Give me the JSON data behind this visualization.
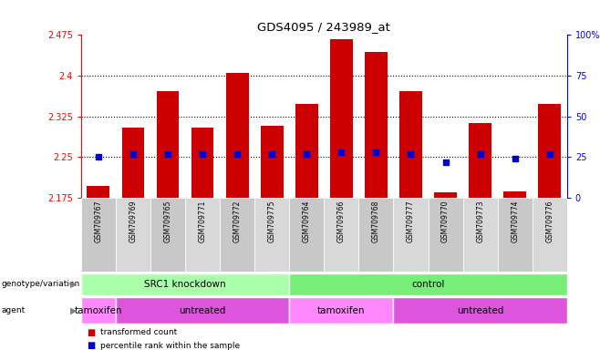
{
  "title": "GDS4095 / 243989_at",
  "samples": [
    "GSM709767",
    "GSM709769",
    "GSM709765",
    "GSM709771",
    "GSM709772",
    "GSM709775",
    "GSM709764",
    "GSM709766",
    "GSM709768",
    "GSM709777",
    "GSM709770",
    "GSM709773",
    "GSM709774",
    "GSM709776"
  ],
  "bar_values": [
    2.197,
    2.305,
    2.372,
    2.305,
    2.405,
    2.308,
    2.348,
    2.467,
    2.443,
    2.372,
    2.185,
    2.312,
    2.187,
    2.348
  ],
  "percentile_values": [
    25,
    27,
    27,
    27,
    27,
    27,
    27,
    28,
    28,
    27,
    22,
    27,
    24,
    27
  ],
  "y_min": 2.175,
  "y_max": 2.475,
  "y_ticks": [
    2.175,
    2.25,
    2.325,
    2.4,
    2.475
  ],
  "y_tick_labels": [
    "2.175",
    "2.25",
    "2.325",
    "2.4",
    "2.475"
  ],
  "y2_ticks": [
    0,
    25,
    50,
    75,
    100
  ],
  "y2_tick_labels": [
    "0",
    "25",
    "50",
    "75",
    "100%"
  ],
  "bar_color": "#cc0000",
  "percentile_color": "#0000cc",
  "grid_yticks": [
    2.25,
    2.325,
    2.4
  ],
  "genotype_groups": [
    {
      "label": "SRC1 knockdown",
      "start": 0,
      "end": 6,
      "color": "#aaffaa"
    },
    {
      "label": "control",
      "start": 6,
      "end": 14,
      "color": "#77ee77"
    }
  ],
  "agent_groups": [
    {
      "label": "tamoxifen",
      "start": 0,
      "end": 1,
      "color": "#ff88ff"
    },
    {
      "label": "untreated",
      "start": 1,
      "end": 6,
      "color": "#dd55dd"
    },
    {
      "label": "tamoxifen",
      "start": 6,
      "end": 9,
      "color": "#ff88ff"
    },
    {
      "label": "untreated",
      "start": 9,
      "end": 14,
      "color": "#dd55dd"
    }
  ],
  "legend_items": [
    {
      "label": "transformed count",
      "color": "#cc0000"
    },
    {
      "label": "percentile rank within the sample",
      "color": "#0000cc"
    }
  ],
  "sample_bg_colors": [
    "#c8c8c8",
    "#d8d8d8"
  ]
}
